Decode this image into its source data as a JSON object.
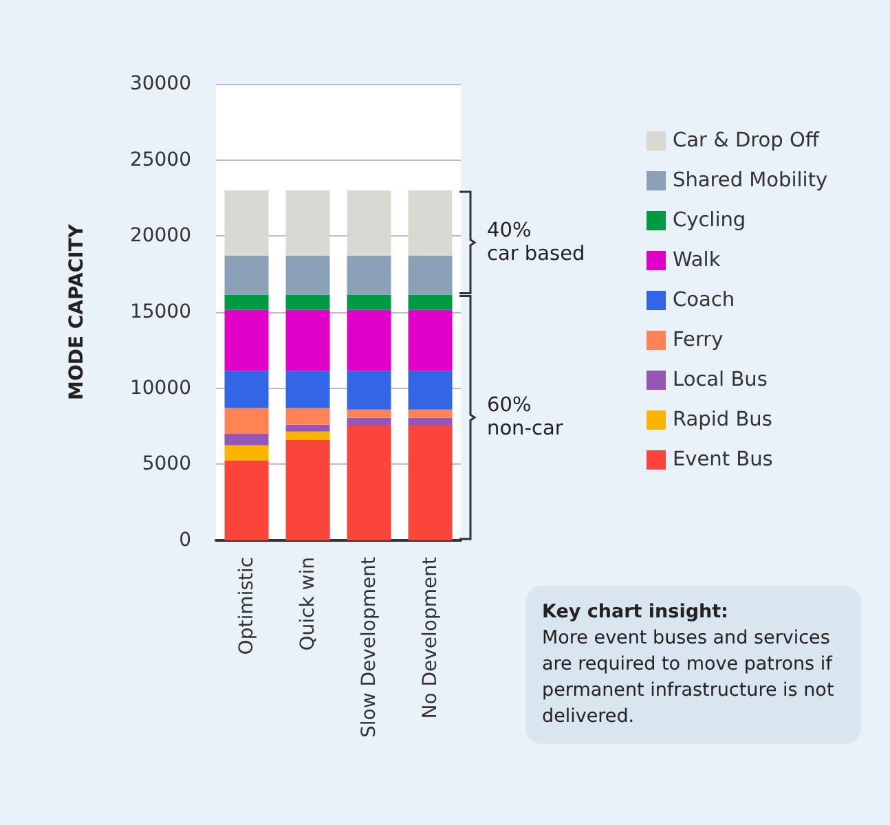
{
  "chart_data": {
    "type": "bar",
    "stacked": true,
    "ylabel": "MODE CAPACITY",
    "categories": [
      "Optimistic",
      "Quick win",
      "Slow Development",
      "No Development"
    ],
    "series": [
      {
        "name": "Event Bus",
        "color": "#fb453b",
        "values": [
          5250,
          6600,
          7550,
          7550
        ]
      },
      {
        "name": "Rapid Bus",
        "color": "#fbb400",
        "values": [
          1000,
          550,
          0,
          0
        ]
      },
      {
        "name": "Local Bus",
        "color": "#9657b4",
        "values": [
          750,
          450,
          500,
          500
        ]
      },
      {
        "name": "Ferry",
        "color": "#ff8355",
        "values": [
          1700,
          1100,
          550,
          550
        ]
      },
      {
        "name": "Coach",
        "color": "#3366e6",
        "values": [
          2450,
          2450,
          2550,
          2550
        ]
      },
      {
        "name": "Walk",
        "color": "#e000c8",
        "values": [
          4000,
          4000,
          4000,
          4000
        ]
      },
      {
        "name": "Cycling",
        "color": "#009a44",
        "values": [
          1000,
          1000,
          1000,
          1000
        ]
      },
      {
        "name": "Shared Mobility",
        "color": "#8aa1b8",
        "values": [
          2550,
          2550,
          2550,
          2550
        ]
      },
      {
        "name": "Car & Drop Off",
        "color": "#d9d9d4",
        "values": [
          4300,
          4300,
          4300,
          4300
        ]
      }
    ],
    "ylim": [
      0,
      30000
    ],
    "yticks": [
      0,
      5000,
      10000,
      15000,
      20000,
      25000,
      30000
    ],
    "grid": "y",
    "legend": "right",
    "annotations": [
      "40%\ncar based",
      "60%\nnon-car",
      "Key chart insight:",
      "More event buses and services are required to move patrons if permanent infrastructure is not delivered."
    ]
  }
}
